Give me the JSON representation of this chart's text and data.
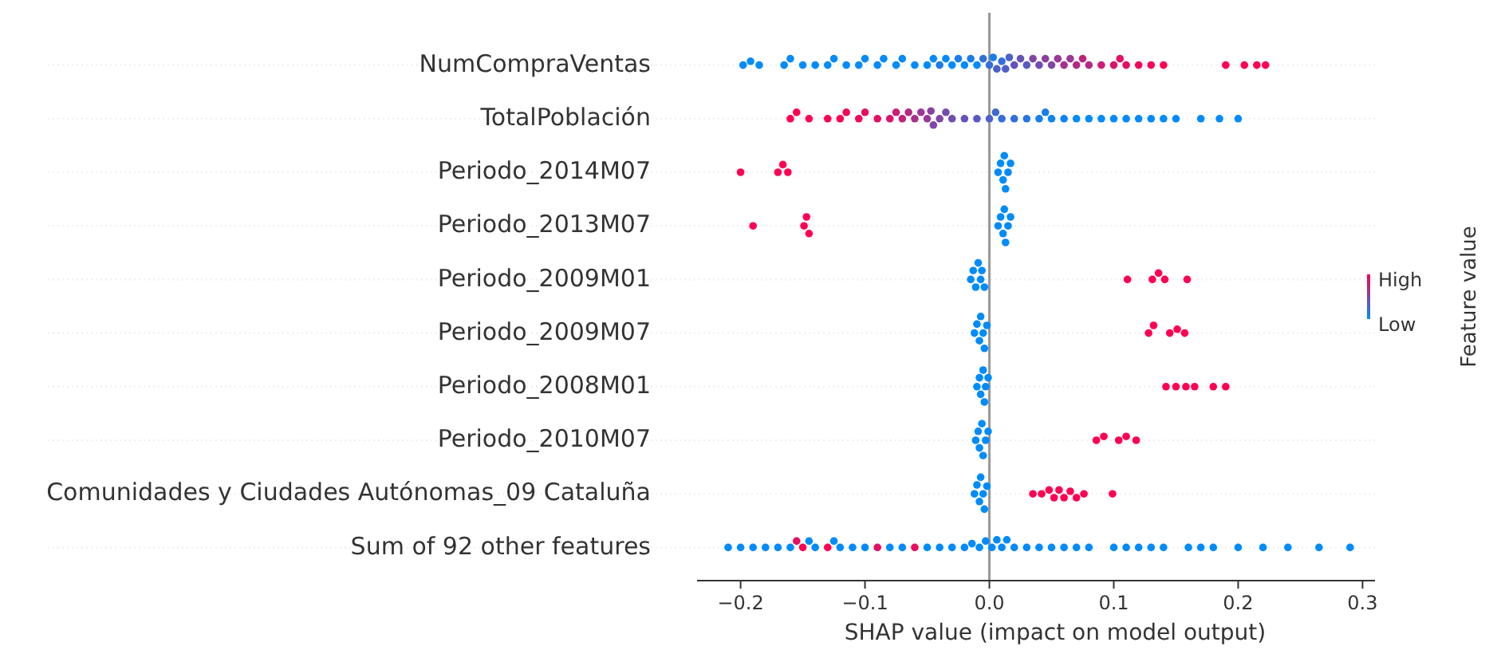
{
  "chart_data": {
    "type": "scatter",
    "orientation": "horizontal",
    "xlabel": "SHAP value (impact on model output)",
    "clabel": "Feature value",
    "annotations": [
      "High",
      "Low"
    ],
    "xlim": [
      -0.235,
      0.31
    ],
    "xticks": [
      {
        "value": -0.2,
        "label": "−0.2"
      },
      {
        "value": -0.1,
        "label": "−0.1"
      },
      {
        "value": 0,
        "label": "0.0"
      },
      {
        "value": 0.1,
        "label": "0.1"
      },
      {
        "value": 0.2,
        "label": "0.2"
      },
      {
        "value": 0.3,
        "label": "0.3"
      }
    ],
    "grid": "y",
    "marker": "circle",
    "ref_lines": [
      {
        "axis": "x",
        "value": 0,
        "color": "#999999"
      }
    ],
    "categories": [
      "NumCompraVentas",
      "TotalPoblación",
      "Periodo_2014M07",
      "Periodo_2013M07",
      "Periodo_2009M01",
      "Periodo_2009M07",
      "Periodo_2008M01",
      "Periodo_2010M07",
      "Comunidades y Ciudades Autónomas_09 Cataluña",
      "Sum of 92 other features"
    ],
    "series": [
      {
        "x": [
          "NumCompraVentas",
          "NumCompraVentas",
          "NumCompraVentas",
          "NumCompraVentas",
          "NumCompraVentas",
          "NumCompraVentas",
          "NumCompraVentas",
          "NumCompraVentas",
          "NumCompraVentas",
          "NumCompraVentas",
          "NumCompraVentas",
          "NumCompraVentas",
          "NumCompraVentas",
          "NumCompraVentas",
          "NumCompraVentas",
          "NumCompraVentas",
          "NumCompraVentas",
          "NumCompraVentas",
          "NumCompraVentas",
          "NumCompraVentas",
          "NumCompraVentas",
          "NumCompraVentas",
          "NumCompraVentas",
          "NumCompraVentas",
          "NumCompraVentas",
          "NumCompraVentas",
          "NumCompraVentas",
          "NumCompraVentas",
          "NumCompraVentas",
          "NumCompraVentas",
          "NumCompraVentas",
          "NumCompraVentas",
          "NumCompraVentas",
          "NumCompraVentas",
          "NumCompraVentas",
          "NumCompraVentas",
          "NumCompraVentas",
          "NumCompraVentas",
          "NumCompraVentas",
          "NumCompraVentas",
          "NumCompraVentas",
          "NumCompraVentas",
          "NumCompraVentas",
          "NumCompraVentas",
          "NumCompraVentas",
          "NumCompraVentas",
          "NumCompraVentas",
          "NumCompraVentas",
          "NumCompraVentas",
          "NumCompraVentas",
          "NumCompraVentas",
          "NumCompraVentas",
          "NumCompraVentas",
          "NumCompraVentas",
          "NumCompraVentas",
          "NumCompraVentas",
          "NumCompraVentas"
        ],
        "values": [
          -0.198,
          -0.192,
          -0.185,
          -0.165,
          -0.16,
          -0.15,
          -0.14,
          -0.13,
          -0.125,
          -0.115,
          -0.105,
          -0.1,
          -0.09,
          -0.085,
          -0.075,
          -0.07,
          -0.06,
          -0.05,
          -0.045,
          -0.04,
          -0.035,
          -0.03,
          -0.025,
          -0.02,
          -0.015,
          -0.01,
          -0.005,
          0,
          0.003,
          0.006,
          0.01,
          0.013,
          0.016,
          0.02,
          0.025,
          0.03,
          0.035,
          0.04,
          0.045,
          0.05,
          0.055,
          0.06,
          0.065,
          0.07,
          0.075,
          0.08,
          0.09,
          0.1,
          0.105,
          0.11,
          0.12,
          0.13,
          0.14,
          0.19,
          0.205,
          0.215,
          0.222
        ],
        "colors": [
          "#008bfb",
          "#008bfb",
          "#008bfb",
          "#008bfb",
          "#008bfb",
          "#008bfb",
          "#008bfb",
          "#008bfb",
          "#008bfb",
          "#008bfb",
          "#008bfb",
          "#008bfb",
          "#008bfb",
          "#008bfb",
          "#008bfb",
          "#008bfb",
          "#008bfb",
          "#008bfb",
          "#008bfb",
          "#1a7dea",
          "#008bfb",
          "#008bfb",
          "#1a7dea",
          "#008bfb",
          "#1a7dea",
          "#008bfb",
          "#336fd9",
          "#336fd9",
          "#1a7dea",
          "#4d61c8",
          "#336fd9",
          "#4d61c8",
          "#4d61c8",
          "#6653b7",
          "#6653b7",
          "#595ac0",
          "#8046a6",
          "#734caf",
          "#8c3f9d",
          "#8046a6",
          "#993896",
          "#a6318d",
          "#993896",
          "#b32a85",
          "#bf237c",
          "#b32a85",
          "#cc1c74",
          "#d9156b",
          "#e60e63",
          "#e60e63",
          "#f2075a",
          "#f2075a",
          "#ff0052",
          "#ff0052",
          "#ff0052",
          "#ff0052",
          "#ff0052"
        ]
      },
      {
        "x": [
          "TotalPoblación",
          "TotalPoblación",
          "TotalPoblación",
          "TotalPoblación",
          "TotalPoblación",
          "TotalPoblación",
          "TotalPoblación",
          "TotalPoblación",
          "TotalPoblación",
          "TotalPoblación",
          "TotalPoblación",
          "TotalPoblación",
          "TotalPoblación",
          "TotalPoblación",
          "TotalPoblación",
          "TotalPoblación",
          "TotalPoblación",
          "TotalPoblación",
          "TotalPoblación",
          "TotalPoblación",
          "TotalPoblación",
          "TotalPoblación",
          "TotalPoblación",
          "TotalPoblación",
          "TotalPoblación",
          "TotalPoblación",
          "TotalPoblación",
          "TotalPoblación",
          "TotalPoblación",
          "TotalPoblación",
          "TotalPoblación",
          "TotalPoblación",
          "TotalPoblación",
          "TotalPoblación",
          "TotalPoblación",
          "TotalPoblación",
          "TotalPoblación",
          "TotalPoblación",
          "TotalPoblación",
          "TotalPoblación",
          "TotalPoblación",
          "TotalPoblación",
          "TotalPoblación",
          "TotalPoblación"
        ],
        "values": [
          -0.16,
          -0.155,
          -0.145,
          -0.13,
          -0.12,
          -0.115,
          -0.105,
          -0.1,
          -0.09,
          -0.08,
          -0.075,
          -0.07,
          -0.065,
          -0.06,
          -0.055,
          -0.05,
          -0.047,
          -0.045,
          -0.04,
          -0.035,
          -0.03,
          -0.02,
          -0.01,
          0,
          0.005,
          0.01,
          0.02,
          0.03,
          0.04,
          0.045,
          0.05,
          0.06,
          0.07,
          0.08,
          0.09,
          0.1,
          0.11,
          0.12,
          0.13,
          0.14,
          0.15,
          0.17,
          0.185,
          0.2
        ],
        "colors": [
          "#ff0052",
          "#ff0052",
          "#ff0052",
          "#ff0052",
          "#ff0052",
          "#f2075a",
          "#f2075a",
          "#e60e63",
          "#e60e63",
          "#d9156b",
          "#cc1c74",
          "#bf237c",
          "#b32a85",
          "#a6318d",
          "#993896",
          "#993896",
          "#8c3f9d",
          "#8046a6",
          "#8046a6",
          "#734caf",
          "#734caf",
          "#6653b7",
          "#595ac0",
          "#4d61c8",
          "#4068d1",
          "#336fd9",
          "#336fd9",
          "#2676e2",
          "#1a7dea",
          "#1a7dea",
          "#0d84f3",
          "#0d84f3",
          "#008bfb",
          "#008bfb",
          "#008bfb",
          "#008bfb",
          "#008bfb",
          "#008bfb",
          "#008bfb",
          "#008bfb",
          "#008bfb",
          "#008bfb",
          "#008bfb",
          "#008bfb"
        ]
      },
      {
        "x": [
          "Periodo_2014M07",
          "Periodo_2014M07",
          "Periodo_2014M07",
          "Periodo_2014M07",
          "Periodo_2014M07",
          "Periodo_2014M07",
          "Periodo_2014M07",
          "Periodo_2014M07",
          "Periodo_2014M07",
          "Periodo_2014M07",
          "Periodo_2014M07"
        ],
        "values": [
          -0.2,
          -0.17,
          -0.166,
          -0.162,
          0.007,
          0.009,
          0.011,
          0.012,
          0.013,
          0.015,
          0.017
        ],
        "colors": [
          "#ff0052",
          "#ff0052",
          "#ff0052",
          "#ff0052",
          "#008bfb",
          "#008bfb",
          "#008bfb",
          "#008bfb",
          "#008bfb",
          "#008bfb",
          "#008bfb"
        ]
      },
      {
        "x": [
          "Periodo_2013M07",
          "Periodo_2013M07",
          "Periodo_2013M07",
          "Periodo_2013M07",
          "Periodo_2013M07",
          "Periodo_2013M07",
          "Periodo_2013M07",
          "Periodo_2013M07",
          "Periodo_2013M07",
          "Periodo_2013M07",
          "Periodo_2013M07"
        ],
        "values": [
          -0.19,
          -0.149,
          -0.147,
          -0.145,
          0.007,
          0.009,
          0.011,
          0.012,
          0.013,
          0.015,
          0.017
        ],
        "colors": [
          "#ff0052",
          "#ff0052",
          "#ff0052",
          "#ff0052",
          "#008bfb",
          "#008bfb",
          "#008bfb",
          "#008bfb",
          "#008bfb",
          "#008bfb",
          "#008bfb"
        ]
      },
      {
        "x": [
          "Periodo_2009M01",
          "Periodo_2009M01",
          "Periodo_2009M01",
          "Periodo_2009M01",
          "Periodo_2009M01",
          "Periodo_2009M01",
          "Periodo_2009M01",
          "Periodo_2009M01",
          "Periodo_2009M01",
          "Periodo_2009M01",
          "Periodo_2009M01",
          "Periodo_2009M01"
        ],
        "values": [
          -0.015,
          -0.013,
          -0.011,
          -0.009,
          -0.007,
          -0.006,
          -0.004,
          0.111,
          0.131,
          0.136,
          0.141,
          0.159
        ],
        "colors": [
          "#008bfb",
          "#008bfb",
          "#008bfb",
          "#008bfb",
          "#008bfb",
          "#008bfb",
          "#008bfb",
          "#ff0052",
          "#ff0052",
          "#ff0052",
          "#ff0052",
          "#ff0052"
        ]
      },
      {
        "x": [
          "Periodo_2009M07",
          "Periodo_2009M07",
          "Periodo_2009M07",
          "Periodo_2009M07",
          "Periodo_2009M07",
          "Periodo_2009M07",
          "Periodo_2009M07",
          "Periodo_2009M07",
          "Periodo_2009M07",
          "Periodo_2009M07",
          "Periodo_2009M07",
          "Periodo_2009M07"
        ],
        "values": [
          -0.012,
          -0.01,
          -0.008,
          -0.007,
          -0.005,
          -0.004,
          -0.002,
          0.128,
          0.132,
          0.145,
          0.151,
          0.157
        ],
        "colors": [
          "#008bfb",
          "#008bfb",
          "#008bfb",
          "#008bfb",
          "#008bfb",
          "#008bfb",
          "#008bfb",
          "#ff0052",
          "#ff0052",
          "#ff0052",
          "#ff0052",
          "#ff0052"
        ]
      },
      {
        "x": [
          "Periodo_2008M01",
          "Periodo_2008M01",
          "Periodo_2008M01",
          "Periodo_2008M01",
          "Periodo_2008M01",
          "Periodo_2008M01",
          "Periodo_2008M01",
          "Periodo_2008M01",
          "Periodo_2008M01",
          "Periodo_2008M01",
          "Periodo_2008M01",
          "Periodo_2008M01",
          "Periodo_2008M01"
        ],
        "values": [
          -0.01,
          -0.008,
          -0.007,
          -0.005,
          -0.004,
          -0.003,
          -0.001,
          0.142,
          0.15,
          0.158,
          0.165,
          0.18,
          0.19
        ],
        "colors": [
          "#008bfb",
          "#008bfb",
          "#008bfb",
          "#008bfb",
          "#008bfb",
          "#008bfb",
          "#008bfb",
          "#ff0052",
          "#ff0052",
          "#ff0052",
          "#ff0052",
          "#ff0052",
          "#ff0052"
        ]
      },
      {
        "x": [
          "Periodo_2010M07",
          "Periodo_2010M07",
          "Periodo_2010M07",
          "Periodo_2010M07",
          "Periodo_2010M07",
          "Periodo_2010M07",
          "Periodo_2010M07",
          "Periodo_2010M07",
          "Periodo_2010M07",
          "Periodo_2010M07",
          "Periodo_2010M07",
          "Periodo_2010M07"
        ],
        "values": [
          -0.011,
          -0.009,
          -0.008,
          -0.006,
          -0.005,
          -0.003,
          -0.001,
          0.086,
          0.092,
          0.104,
          0.11,
          0.118
        ],
        "colors": [
          "#008bfb",
          "#008bfb",
          "#008bfb",
          "#008bfb",
          "#008bfb",
          "#008bfb",
          "#008bfb",
          "#ff0052",
          "#ff0052",
          "#ff0052",
          "#ff0052",
          "#ff0052"
        ]
      },
      {
        "x": [
          "Comunidades y Ciudades Autónomas_09 Cataluña",
          "Comunidades y Ciudades Autónomas_09 Cataluña",
          "Comunidades y Ciudades Autónomas_09 Cataluña",
          "Comunidades y Ciudades Autónomas_09 Cataluña",
          "Comunidades y Ciudades Autónomas_09 Cataluña",
          "Comunidades y Ciudades Autónomas_09 Cataluña",
          "Comunidades y Ciudades Autónomas_09 Cataluña",
          "Comunidades y Ciudades Autónomas_09 Cataluña",
          "Comunidades y Ciudades Autónomas_09 Cataluña",
          "Comunidades y Ciudades Autónomas_09 Cataluña",
          "Comunidades y Ciudades Autónomas_09 Cataluña",
          "Comunidades y Ciudades Autónomas_09 Cataluña",
          "Comunidades y Ciudades Autónomas_09 Cataluña",
          "Comunidades y Ciudades Autónomas_09 Cataluña",
          "Comunidades y Ciudades Autónomas_09 Cataluña",
          "Comunidades y Ciudades Autónomas_09 Cataluña",
          "Comunidades y Ciudades Autónomas_09 Cataluña"
        ],
        "values": [
          -0.012,
          -0.01,
          -0.008,
          -0.007,
          -0.005,
          -0.004,
          -0.002,
          0.035,
          0.042,
          0.048,
          0.052,
          0.056,
          0.06,
          0.065,
          0.07,
          0.076,
          0.099
        ],
        "colors": [
          "#008bfb",
          "#008bfb",
          "#008bfb",
          "#008bfb",
          "#008bfb",
          "#008bfb",
          "#008bfb",
          "#ff0052",
          "#ff0052",
          "#ff0052",
          "#ff0052",
          "#ff0052",
          "#ff0052",
          "#ff0052",
          "#ff0052",
          "#ff0052",
          "#ff0052"
        ]
      },
      {
        "x": [
          "Sum of 92 other features",
          "Sum of 92 other features",
          "Sum of 92 other features",
          "Sum of 92 other features",
          "Sum of 92 other features",
          "Sum of 92 other features",
          "Sum of 92 other features",
          "Sum of 92 other features",
          "Sum of 92 other features",
          "Sum of 92 other features",
          "Sum of 92 other features",
          "Sum of 92 other features",
          "Sum of 92 other features",
          "Sum of 92 other features",
          "Sum of 92 other features",
          "Sum of 92 other features",
          "Sum of 92 other features",
          "Sum of 92 other features",
          "Sum of 92 other features",
          "Sum of 92 other features",
          "Sum of 92 other features",
          "Sum of 92 other features",
          "Sum of 92 other features",
          "Sum of 92 other features",
          "Sum of 92 other features",
          "Sum of 92 other features",
          "Sum of 92 other features",
          "Sum of 92 other features",
          "Sum of 92 other features",
          "Sum of 92 other features",
          "Sum of 92 other features",
          "Sum of 92 other features",
          "Sum of 92 other features",
          "Sum of 92 other features",
          "Sum of 92 other features",
          "Sum of 92 other features",
          "Sum of 92 other features",
          "Sum of 92 other features",
          "Sum of 92 other features",
          "Sum of 92 other features",
          "Sum of 92 other features",
          "Sum of 92 other features",
          "Sum of 92 other features",
          "Sum of 92 other features",
          "Sum of 92 other features",
          "Sum of 92 other features",
          "Sum of 92 other features",
          "Sum of 92 other features",
          "Sum of 92 other features",
          "Sum of 92 other features"
        ],
        "values": [
          -0.21,
          -0.2,
          -0.19,
          -0.18,
          -0.17,
          -0.16,
          -0.155,
          -0.15,
          -0.145,
          -0.14,
          -0.13,
          -0.125,
          -0.12,
          -0.11,
          -0.1,
          -0.09,
          -0.08,
          -0.07,
          -0.06,
          -0.05,
          -0.04,
          -0.03,
          -0.02,
          -0.014,
          -0.008,
          -0.003,
          0.002,
          0.006,
          0.01,
          0.014,
          0.02,
          0.03,
          0.04,
          0.05,
          0.06,
          0.07,
          0.08,
          0.1,
          0.11,
          0.12,
          0.13,
          0.14,
          0.16,
          0.17,
          0.18,
          0.2,
          0.22,
          0.24,
          0.265,
          0.29
        ],
        "colors": [
          "#008bfb",
          "#008bfb",
          "#008bfb",
          "#008bfb",
          "#008bfb",
          "#008bfb",
          "#e60e63",
          "#ff0052",
          "#008bfb",
          "#008bfb",
          "#ff0052",
          "#008bfb",
          "#008bfb",
          "#008bfb",
          "#008bfb",
          "#e60e63",
          "#008bfb",
          "#008bfb",
          "#e60e63",
          "#008bfb",
          "#008bfb",
          "#008bfb",
          "#008bfb",
          "#008bfb",
          "#008bfb",
          "#008bfb",
          "#008bfb",
          "#008bfb",
          "#008bfb",
          "#008bfb",
          "#008bfb",
          "#008bfb",
          "#008bfb",
          "#008bfb",
          "#008bfb",
          "#008bfb",
          "#008bfb",
          "#008bfb",
          "#008bfb",
          "#008bfb",
          "#008bfb",
          "#008bfb",
          "#008bfb",
          "#008bfb",
          "#008bfb",
          "#008bfb",
          "#008bfb",
          "#008bfb",
          "#008bfb",
          "#008bfb"
        ]
      }
    ]
  }
}
